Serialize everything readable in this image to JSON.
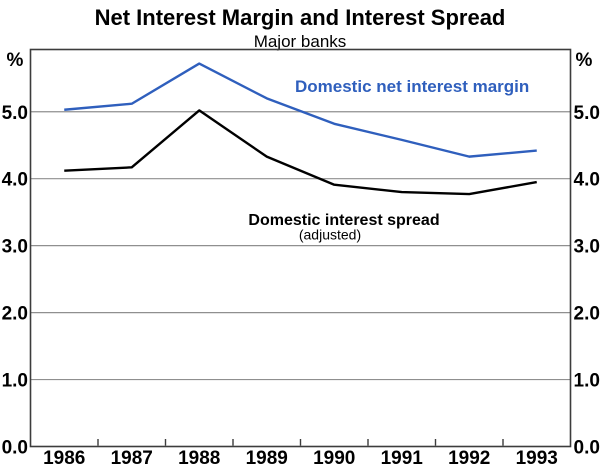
{
  "chart_data": {
    "type": "line",
    "title": "Net Interest Margin and Interest Spread",
    "subtitle": "Major banks",
    "unit_left": "%",
    "unit_right": "%",
    "categories": [
      "1986",
      "1987",
      "1988",
      "1989",
      "1990",
      "1991",
      "1992",
      "1993"
    ],
    "series": [
      {
        "name": "Domestic net interest margin",
        "color": "#2f5fbd",
        "values": [
          5.03,
          5.12,
          5.72,
          5.2,
          4.82,
          4.58,
          4.33,
          4.42
        ]
      },
      {
        "name": "Domestic interest spread",
        "note": "(adjusted)",
        "color": "#000000",
        "values": [
          4.12,
          4.17,
          5.02,
          4.33,
          3.91,
          3.8,
          3.77,
          3.95
        ]
      }
    ],
    "ylim": [
      0,
      5.93
    ],
    "y_ticks": [
      0,
      1,
      2,
      3,
      4,
      5
    ],
    "y_tick_decimals": 1,
    "grid": "horizontal",
    "legend_position": "inline-annotations",
    "grid_color": "#8f8f8f",
    "frame_color": "#3c3c3c",
    "text_color": "#000000"
  }
}
